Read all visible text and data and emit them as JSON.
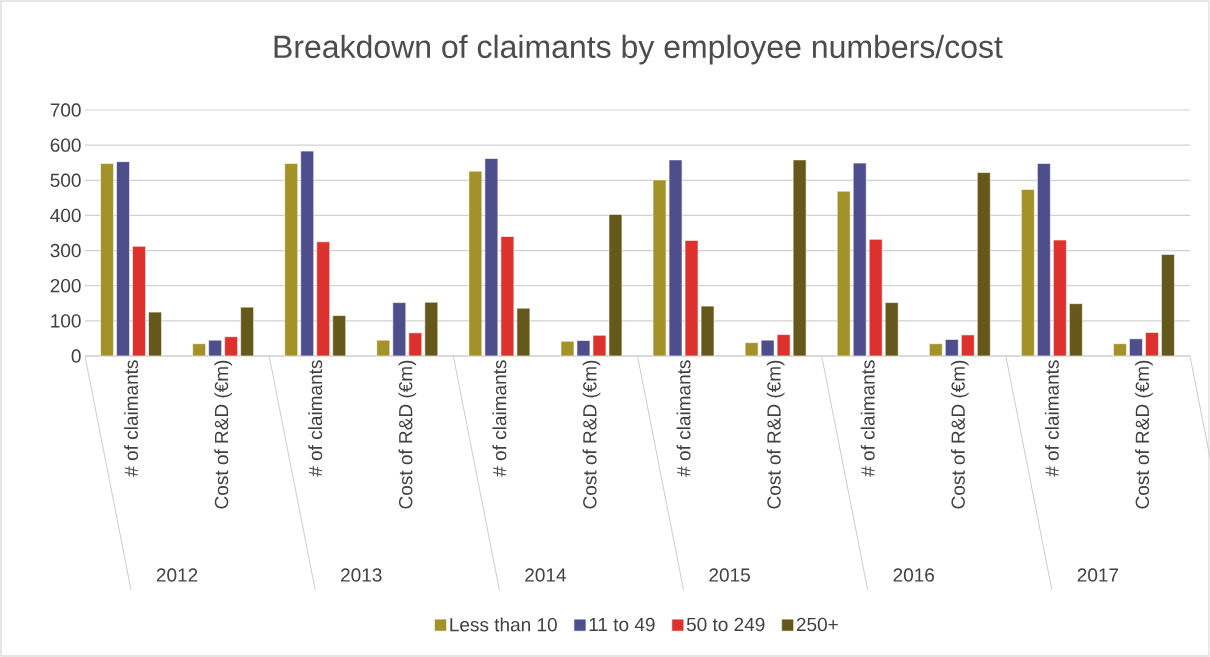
{
  "chart_data": {
    "type": "bar",
    "title": "Breakdown of claimants by employee numbers/cost",
    "categories": [
      "# of claimants",
      "Cost of R&D (€m)",
      "# of claimants",
      "Cost of R&D (€m)",
      "# of claimants",
      "Cost of R&D (€m)",
      "# of claimants",
      "Cost of R&D (€m)",
      "# of claimants",
      "Cost of R&D (€m)",
      "# of claimants",
      "Cost of R&D (€m)"
    ],
    "series": [
      {
        "name": "Less than 10",
        "color": "#a39129",
        "values": [
          548,
          35,
          548,
          45,
          526,
          42,
          501,
          38,
          469,
          35,
          474,
          35
        ]
      },
      {
        "name": "11 to 49",
        "color": "#4e4e8c",
        "values": [
          553,
          45,
          583,
          152,
          562,
          44,
          558,
          45,
          549,
          47,
          548,
          49
        ]
      },
      {
        "name": "50 to 249",
        "color": "#dc312d",
        "values": [
          312,
          55,
          325,
          66,
          340,
          59,
          329,
          61,
          332,
          60,
          330,
          67
        ]
      },
      {
        "name": "250+",
        "color": "#64581a",
        "values": [
          125,
          139,
          115,
          153,
          136,
          403,
          142,
          558,
          152,
          522,
          149,
          289
        ]
      }
    ],
    "ylim": [
      0,
      700
    ],
    "yticks": [
      0,
      100,
      200,
      300,
      400,
      500,
      600,
      700
    ],
    "grid": "y",
    "legend": "bottom",
    "annotations": [
      "2012",
      "2013",
      "2014",
      "2015",
      "2016",
      "2017"
    ]
  }
}
